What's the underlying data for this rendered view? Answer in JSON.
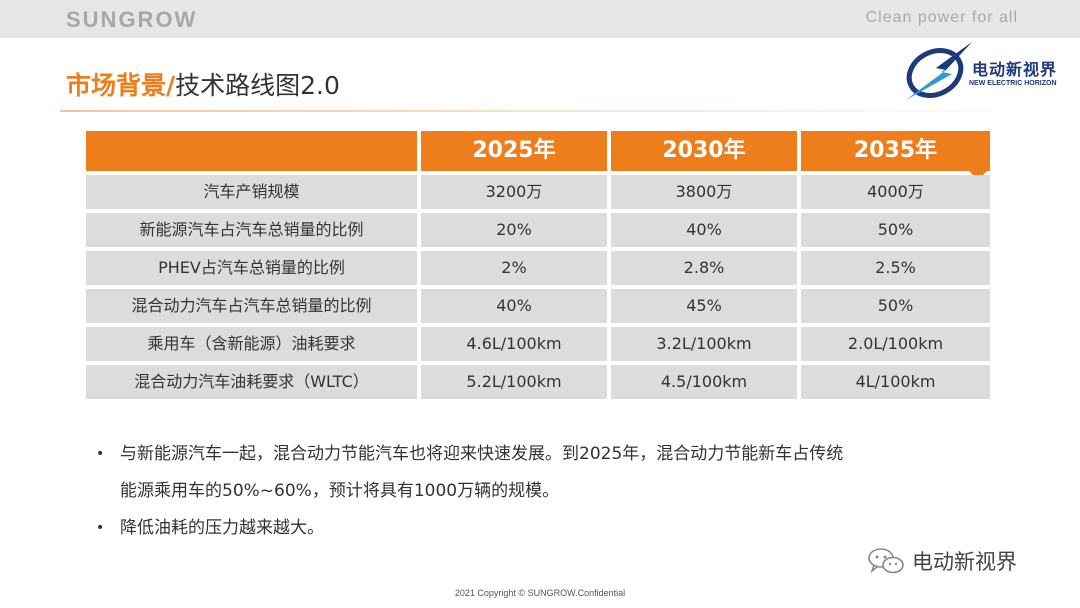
{
  "header": {
    "brand": "SUNGROW",
    "tagline": "Clean power for all"
  },
  "title": {
    "accent": "市场背景/",
    "rest": "技术路线图2.0"
  },
  "logo": {
    "name_cn": "电动新视界",
    "name_en": "NEW ELECTRIC HORIZON"
  },
  "table": {
    "columns": [
      "",
      "2025年",
      "2030年",
      "2035年"
    ],
    "rows": [
      [
        "汽车产销规模",
        "3200万",
        "3800万",
        "4000万"
      ],
      [
        "新能源汽车占汽车总销量的比例",
        "20%",
        "40%",
        "50%"
      ],
      [
        "PHEV占汽车总销量的比例",
        "2%",
        "2.8%",
        "2.5%"
      ],
      [
        "混合动力汽车占汽车总销量的比例",
        "40%",
        "45%",
        "50%"
      ],
      [
        "乘用车（含新能源）油耗要求",
        "4.6L/100km",
        "3.2L/100km",
        "2.0L/100km"
      ],
      [
        "混合动力汽车油耗要求（WLTC）",
        "5.2L/100km",
        "4.5/100km",
        "4L/100km"
      ]
    ]
  },
  "bullets": [
    {
      "marker": "•",
      "line1": "与新能源汽车一起，混合动力节能汽车也将迎来快速发展。到2025年，混合动力节能新车占传统",
      "line2": "能源乘用车的50%~60%，预计将具有1000万辆的规模。"
    },
    {
      "marker": "•",
      "line1": "降低油耗的压力越来越大。"
    }
  ],
  "watermark": {
    "text": "电动新视界",
    "icon": "wechat-icon"
  },
  "footer": "2021 Copyright © SUNGROW.Confidential",
  "colors": {
    "accent": "#ee7d1b",
    "cell_bg": "#dcdcdc",
    "logo_blue": "#1e3a7a"
  }
}
